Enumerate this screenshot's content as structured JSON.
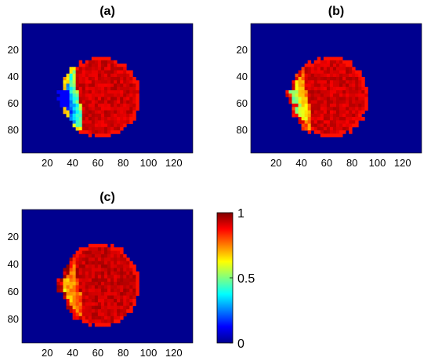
{
  "colors": {
    "background_field": "#00008f",
    "colormap": "jet"
  },
  "chart_data": [
    {
      "type": "heatmap",
      "title": "(a)",
      "xlim": [
        0,
        135
      ],
      "ylim": [
        0,
        97
      ],
      "x_ticks": [
        20,
        40,
        60,
        80,
        100,
        120
      ],
      "y_ticks": [
        20,
        40,
        60,
        80
      ],
      "y_reversed": true,
      "description_values": {
        "disk_center": [
          63,
          55
        ],
        "disk_radius": 30,
        "core_value": 0.92,
        "rim_value": 0.55,
        "left_cavity_value": 0.1
      }
    },
    {
      "type": "heatmap",
      "title": "(b)",
      "xlim": [
        0,
        135
      ],
      "ylim": [
        0,
        97
      ],
      "x_ticks": [
        20,
        40,
        60,
        80,
        100,
        120
      ],
      "y_ticks": [
        20,
        40,
        60,
        80
      ],
      "y_reversed": true,
      "description_values": {
        "disk_center": [
          63,
          55
        ],
        "disk_radius": 30,
        "core_value": 0.92,
        "rim_value": 0.75,
        "left_cavity_value": 0.5
      }
    },
    {
      "type": "heatmap",
      "title": "(c)",
      "xlim": [
        0,
        135
      ],
      "ylim": [
        0,
        97
      ],
      "x_ticks": [
        20,
        40,
        60,
        80,
        100,
        120
      ],
      "y_ticks": [
        20,
        40,
        60,
        80
      ],
      "y_reversed": true,
      "description_values": {
        "disk_center": [
          63,
          55
        ],
        "disk_radius": 30,
        "core_value": 0.93,
        "rim_value": 0.8,
        "left_cavity_value": 0.68
      }
    }
  ],
  "colorbar": {
    "range": [
      0,
      1
    ],
    "ticks": [
      {
        "value": 1,
        "label": "1"
      },
      {
        "value": 0.5,
        "label": "0.5"
      },
      {
        "value": 0,
        "label": "0"
      }
    ]
  }
}
